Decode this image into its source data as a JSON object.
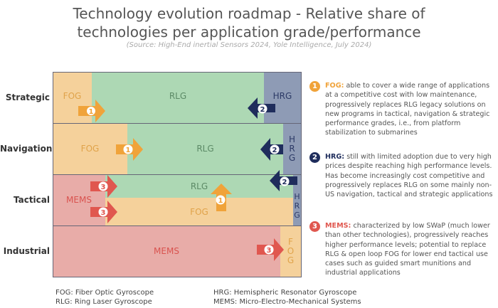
{
  "title": "Technology evolution roadmap - Relative share of technologies per application grade/performance",
  "source": "(Source: High-End inertial Sensors 2024, Yole Intelligence, July 2024)",
  "colors": {
    "FOG": "#f5d19b",
    "RLG": "#add8b4",
    "HRG": "#8e9bb5",
    "MEMS": "#e8aca8",
    "badge1": "#f0a33a",
    "badge2": "#1f2d5c",
    "badge3": "#e0574f"
  },
  "rows": [
    {
      "label": "Strategic",
      "segments": [
        "FOG",
        "RLG",
        "HRG"
      ]
    },
    {
      "label": "Navigation",
      "segments": [
        "FOG",
        "RLG",
        "H R G"
      ]
    },
    {
      "label": "Tactical",
      "segments": [
        "MEMS",
        "RLG",
        "FOG",
        "H R G"
      ]
    },
    {
      "label": "Industrial",
      "segments": [
        "MEMS",
        "F O G"
      ]
    }
  ],
  "badges": [
    "1",
    "2",
    "3"
  ],
  "notes": [
    {
      "num": "1",
      "head": "FOG:",
      "text": " able to cover a wide range of applications at a competitive cost with low maintenance, progressively replaces RLG legacy solutions on new programs in tactical, navigation & strategic performance grades, i.e., from platform stabilization to submarines"
    },
    {
      "num": "2",
      "head": "HRG:",
      "text": " still with limited adoption due to very high prices despite reaching high performance levels. Has become increasingly cost competitive and progressively replaces RLG on some mainly non-US navigation, tactical and strategic applications"
    },
    {
      "num": "3",
      "head": "MEMS:",
      "text": " characterized by low SWaP (much lower than other technologies), progressively reaches higher performance levels; potential to replace RLG & open loop FOG for lower end tactical use cases such as guided smart munitions and industrial applications"
    }
  ],
  "legend": [
    "FOG: Fiber Optic Gyroscope",
    "RLG: Ring Laser Gyroscope",
    "HRG: Hemispheric Resonator Gyroscope",
    "MEMS: Micro-Electro-Mechanical Systems"
  ]
}
